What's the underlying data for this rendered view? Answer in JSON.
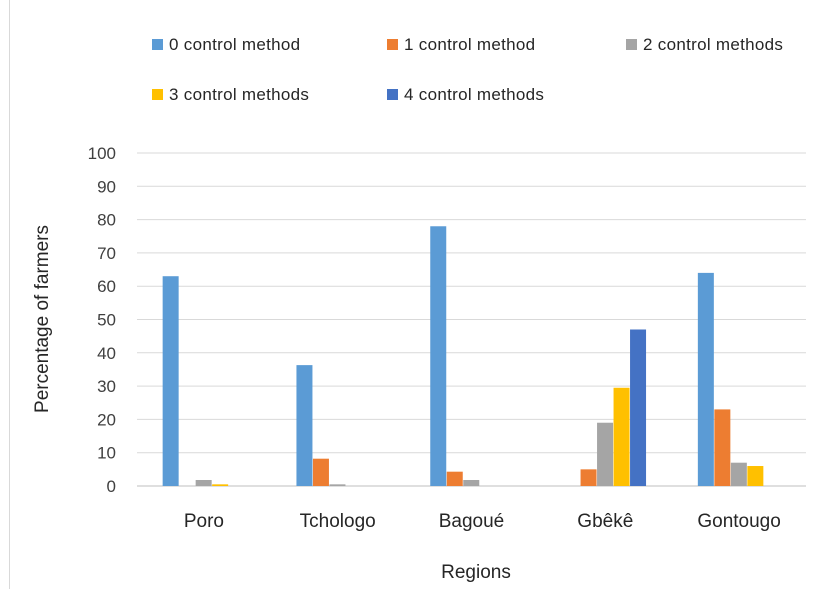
{
  "chart_data": {
    "type": "bar",
    "xlabel": "Regions",
    "ylabel": "Percentage of farmers",
    "ylim": [
      0,
      100
    ],
    "yticks": [
      0,
      10,
      20,
      30,
      40,
      50,
      60,
      70,
      80,
      90,
      100
    ],
    "grid": true,
    "legend_position": "top",
    "categories": [
      "Poro",
      "Tchologo",
      "Bagoué",
      "Gbêkê",
      "Gontougo"
    ],
    "series": [
      {
        "name": "0 control method",
        "color": "#5b9bd5",
        "values": [
          63,
          36.3,
          78,
          0,
          64
        ]
      },
      {
        "name": "1 control method",
        "color": "#ed7d31",
        "values": [
          0,
          8.2,
          4.3,
          5,
          23
        ]
      },
      {
        "name": "2 control methods",
        "color": "#a5a5a5",
        "values": [
          1.8,
          0.5,
          1.8,
          19,
          7
        ]
      },
      {
        "name": "3 control methods",
        "color": "#ffc000",
        "values": [
          0.5,
          0,
          0,
          29.5,
          6
        ]
      },
      {
        "name": "4 control methods",
        "color": "#4472c4",
        "values": [
          0,
          0,
          0,
          47,
          0
        ]
      }
    ]
  }
}
